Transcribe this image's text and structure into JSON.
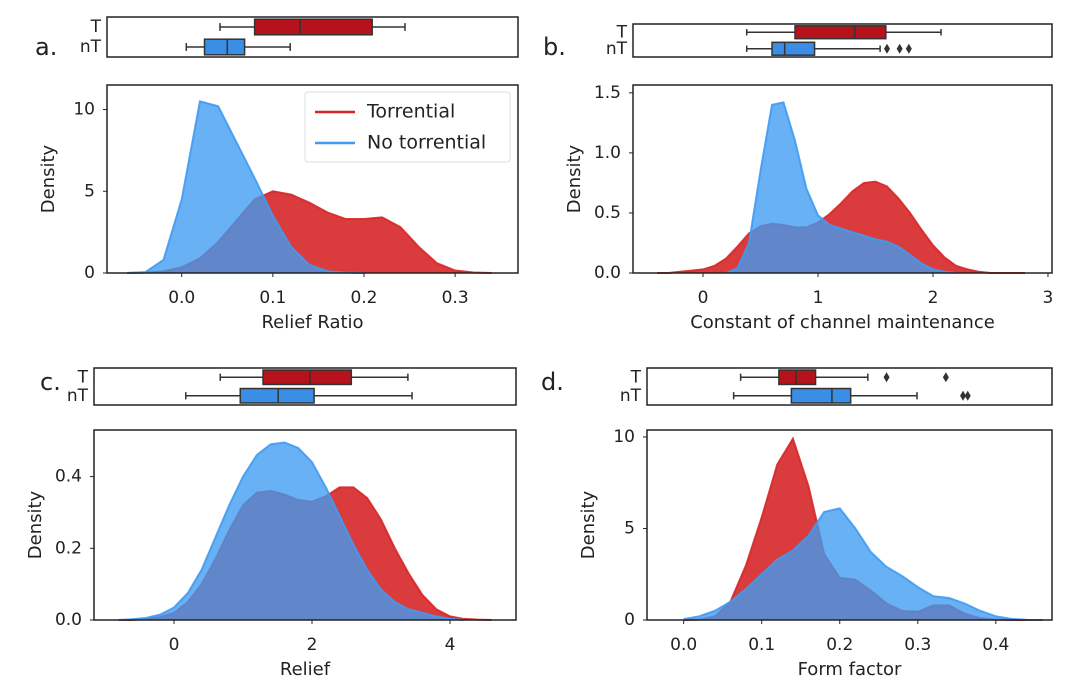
{
  "chart_data": [
    {
      "type": "box",
      "label": "a.",
      "categories": [
        "T",
        "nT"
      ],
      "xlim": [
        -0.082,
        0.369
      ],
      "boxes": [
        {
          "color": "#b5121b",
          "min": 0.042,
          "q1": 0.08,
          "median": 0.13,
          "q3": 0.209,
          "max": 0.245,
          "outliers": []
        },
        {
          "color": "#3a8ee6",
          "min": 0.005,
          "q1": 0.025,
          "median": 0.05,
          "q3": 0.069,
          "max": 0.119,
          "outliers": []
        }
      ]
    },
    {
      "type": "density",
      "xlabel": "Relief Ratio",
      "ylabel": "Density",
      "xlim": [
        -0.082,
        0.369
      ],
      "ylim": [
        0,
        11.5
      ],
      "xticks": [
        {
          "value": 0,
          "label": "0.0"
        },
        0.1,
        0.2,
        0.3
      ],
      "yticks": [
        0,
        5,
        10
      ],
      "legend": "upper right",
      "x": [
        -0.06,
        -0.04,
        -0.02,
        0,
        0.02,
        0.04,
        0.06,
        0.08,
        0.1,
        0.12,
        0.14,
        0.16,
        0.18,
        0.2,
        0.22,
        0.24,
        0.26,
        0.28,
        0.3,
        0.32,
        0.34
      ],
      "series": [
        {
          "name": "Torrential",
          "color": "#d62728",
          "values": [
            0,
            0.02,
            0.1,
            0.35,
            0.9,
            1.9,
            3.2,
            4.5,
            5.0,
            4.8,
            4.3,
            3.7,
            3.3,
            3.3,
            3.4,
            2.8,
            1.6,
            0.6,
            0.15,
            0.03,
            0
          ]
        },
        {
          "name": "No torrential",
          "color": "#3f9bf2",
          "values": [
            0,
            0.05,
            0.8,
            4.5,
            10.5,
            10.2,
            8.0,
            5.8,
            3.5,
            1.6,
            0.5,
            0.1,
            0.02,
            0,
            null,
            null,
            null,
            null,
            null,
            null,
            null
          ]
        }
      ]
    },
    {
      "type": "box",
      "label": "b.",
      "categories": [
        "T",
        "nT"
      ],
      "xlim": [
        -0.609,
        3.035
      ],
      "boxes": [
        {
          "color": "#b5121b",
          "min": 0.38,
          "q1": 0.8,
          "median": 1.32,
          "q3": 1.59,
          "max": 2.07,
          "outliers": []
        },
        {
          "color": "#3a8ee6",
          "min": 0.38,
          "q1": 0.6,
          "median": 0.71,
          "q3": 0.97,
          "max": 1.54,
          "outliers": [
            1.6,
            1.71,
            1.79
          ]
        }
      ]
    },
    {
      "type": "density",
      "xlabel": "Constant of channel maintenance",
      "ylabel": "Density",
      "xlim": [
        -0.609,
        3.035
      ],
      "ylim": [
        0,
        1.565
      ],
      "xticks": [
        0,
        1,
        2,
        3
      ],
      "yticks": [
        {
          "value": 0,
          "label": "0.0"
        },
        0.5,
        {
          "value": 1,
          "label": "1.0"
        },
        1.5
      ],
      "x": [
        -0.4,
        -0.3,
        -0.2,
        -0.1,
        0,
        0.1,
        0.2,
        0.3,
        0.4,
        0.5,
        0.6,
        0.7,
        0.8,
        0.9,
        1.0,
        1.1,
        1.2,
        1.3,
        1.4,
        1.5,
        1.6,
        1.7,
        1.8,
        1.9,
        2.0,
        2.1,
        2.2,
        2.3,
        2.4,
        2.5,
        2.6,
        2.7,
        2.8
      ],
      "series": [
        {
          "name": "Torrential",
          "color": "#d62728",
          "values": [
            0,
            0,
            0.01,
            0.02,
            0.03,
            0.06,
            0.12,
            0.22,
            0.33,
            0.39,
            0.41,
            0.4,
            0.38,
            0.38,
            0.42,
            0.49,
            0.58,
            0.68,
            0.75,
            0.76,
            0.72,
            0.62,
            0.5,
            0.36,
            0.23,
            0.13,
            0.06,
            0.03,
            0.01,
            0,
            0,
            0,
            0
          ]
        },
        {
          "name": "No torrential",
          "color": "#3f9bf2",
          "values": [
            null,
            null,
            null,
            null,
            null,
            null,
            0,
            0.04,
            0.25,
            0.85,
            1.4,
            1.42,
            1.1,
            0.7,
            0.48,
            0.4,
            0.37,
            0.34,
            0.31,
            0.28,
            0.26,
            0.22,
            0.15,
            0.08,
            0.03,
            0.01,
            0,
            null,
            null,
            null,
            null,
            null,
            null
          ]
        }
      ]
    },
    {
      "type": "box",
      "label": "c.",
      "categories": [
        "T",
        "nT"
      ],
      "xlim": [
        -1.16,
        4.957
      ],
      "boxes": [
        {
          "color": "#b5121b",
          "min": 0.67,
          "q1": 1.29,
          "median": 1.97,
          "q3": 2.57,
          "max": 3.39,
          "outliers": []
        },
        {
          "color": "#3a8ee6",
          "min": 0.17,
          "q1": 0.96,
          "median": 1.51,
          "q3": 2.03,
          "max": 3.45,
          "outliers": []
        }
      ]
    },
    {
      "type": "density",
      "xlabel": "Relief",
      "ylabel": "Density",
      "xlim": [
        -1.16,
        4.957
      ],
      "ylim": [
        0,
        0.53
      ],
      "xticks": [
        0,
        2,
        4
      ],
      "yticks": [
        {
          "value": 0,
          "label": "0.0"
        },
        0.2,
        0.4
      ],
      "x": [
        -0.8,
        -0.6,
        -0.4,
        -0.2,
        0,
        0.2,
        0.4,
        0.6,
        0.8,
        1.0,
        1.2,
        1.4,
        1.6,
        1.8,
        2.0,
        2.2,
        2.4,
        2.6,
        2.8,
        3.0,
        3.2,
        3.4,
        3.6,
        3.8,
        4.0,
        4.2,
        4.4,
        4.6
      ],
      "series": [
        {
          "name": "Torrential",
          "color": "#d62728",
          "values": [
            0,
            0,
            0.003,
            0.008,
            0.02,
            0.05,
            0.1,
            0.17,
            0.25,
            0.32,
            0.355,
            0.36,
            0.35,
            0.335,
            0.33,
            0.345,
            0.37,
            0.37,
            0.34,
            0.28,
            0.2,
            0.13,
            0.07,
            0.03,
            0.01,
            0.003,
            0.001,
            0
          ]
        },
        {
          "name": "No torrential",
          "color": "#3f9bf2",
          "values": [
            0,
            0.002,
            0.006,
            0.015,
            0.035,
            0.075,
            0.14,
            0.23,
            0.32,
            0.4,
            0.46,
            0.49,
            0.495,
            0.48,
            0.44,
            0.37,
            0.29,
            0.21,
            0.14,
            0.085,
            0.05,
            0.03,
            0.02,
            0.01,
            0.003,
            0,
            null,
            null
          ]
        }
      ]
    },
    {
      "type": "box",
      "label": "d.",
      "categories": [
        "T",
        "nT"
      ],
      "xlim": [
        -0.047,
        0.472
      ],
      "boxes": [
        {
          "color": "#b5121b",
          "min": 0.073,
          "q1": 0.122,
          "median": 0.144,
          "q3": 0.169,
          "max": 0.236,
          "outliers": [
            0.26,
            0.336
          ]
        },
        {
          "color": "#3a8ee6",
          "min": 0.064,
          "q1": 0.138,
          "median": 0.19,
          "q3": 0.214,
          "max": 0.299,
          "outliers": [
            0.358,
            0.364
          ]
        }
      ]
    },
    {
      "type": "density",
      "xlabel": "Form factor",
      "ylabel": "Density",
      "xlim": [
        -0.047,
        0.472
      ],
      "ylim": [
        0,
        10.38
      ],
      "xticks": [
        {
          "value": 0,
          "label": "0.0"
        },
        0.1,
        0.2,
        0.3,
        0.4
      ],
      "yticks": [
        0,
        5,
        10
      ],
      "x": [
        0,
        0.02,
        0.04,
        0.06,
        0.08,
        0.1,
        0.12,
        0.14,
        0.16,
        0.18,
        0.2,
        0.22,
        0.24,
        0.26,
        0.28,
        0.3,
        0.32,
        0.34,
        0.36,
        0.38,
        0.4,
        0.42,
        0.44,
        0.46
      ],
      "series": [
        {
          "name": "Torrential",
          "color": "#d62728",
          "values": [
            0,
            0.02,
            0.2,
            1.0,
            3.0,
            5.6,
            8.5,
            9.9,
            7.3,
            3.6,
            2.3,
            2.2,
            1.6,
            0.9,
            0.5,
            0.45,
            0.8,
            0.8,
            0.35,
            0.1,
            0.02,
            0,
            0,
            0
          ]
        },
        {
          "name": "No torrential",
          "color": "#3f9bf2",
          "values": [
            0.05,
            0.2,
            0.5,
            1.0,
            1.7,
            2.5,
            3.3,
            3.8,
            4.6,
            5.9,
            6.1,
            5.0,
            3.7,
            2.9,
            2.4,
            1.8,
            1.3,
            1.2,
            0.9,
            0.5,
            0.2,
            0.06,
            0.01,
            0
          ]
        }
      ]
    }
  ]
}
